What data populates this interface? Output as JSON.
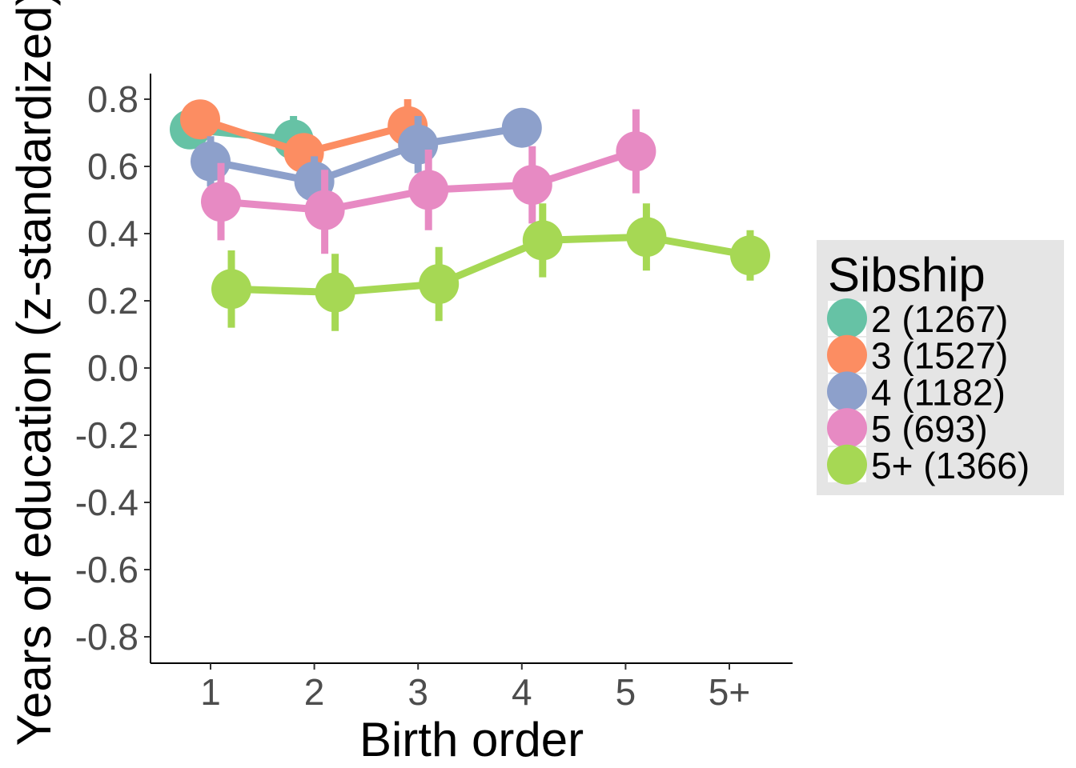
{
  "chart_data": {
    "type": "line",
    "xlabel": "Birth order",
    "ylabel": "Years of education (z-standardized)",
    "categories": [
      "1",
      "2",
      "3",
      "4",
      "5",
      "5+"
    ],
    "ylim": [
      -0.88,
      0.88
    ],
    "yticks": [
      -0.8,
      -0.6,
      -0.4,
      -0.2,
      0.0,
      0.2,
      0.4,
      0.6,
      0.8
    ],
    "ytick_labels": [
      "-0.8",
      "-0.6",
      "-0.4",
      "-0.2",
      "0.0",
      "0.2",
      "0.4",
      "0.6",
      "0.8"
    ],
    "grid": false,
    "legend": {
      "title": "Sibship",
      "position": "right"
    },
    "series": [
      {
        "name": "2 (1267)",
        "color": "#66c2a5",
        "points": [
          {
            "x": "1",
            "y": 0.71,
            "lo": 0.67,
            "hi": 0.75
          },
          {
            "x": "2",
            "y": 0.68,
            "lo": 0.62,
            "hi": 0.75
          }
        ]
      },
      {
        "name": "3 (1527)",
        "color": "#fc8d62",
        "points": [
          {
            "x": "1",
            "y": 0.74,
            "lo": 0.71,
            "hi": 0.77
          },
          {
            "x": "2",
            "y": 0.64,
            "lo": 0.59,
            "hi": 0.69
          },
          {
            "x": "3",
            "y": 0.72,
            "lo": 0.64,
            "hi": 0.8
          }
        ]
      },
      {
        "name": "4 (1182)",
        "color": "#8da0cb",
        "points": [
          {
            "x": "1",
            "y": 0.615,
            "lo": 0.54,
            "hi": 0.69
          },
          {
            "x": "2",
            "y": 0.555,
            "lo": 0.48,
            "hi": 0.63
          },
          {
            "x": "3",
            "y": 0.665,
            "lo": 0.58,
            "hi": 0.75
          },
          {
            "x": "4",
            "y": 0.715,
            "lo": 0.7,
            "hi": 0.73
          }
        ]
      },
      {
        "name": "5 (693)",
        "color": "#e78ac3",
        "points": [
          {
            "x": "1",
            "y": 0.495,
            "lo": 0.38,
            "hi": 0.61
          },
          {
            "x": "2",
            "y": 0.47,
            "lo": 0.34,
            "hi": 0.59
          },
          {
            "x": "3",
            "y": 0.53,
            "lo": 0.41,
            "hi": 0.65
          },
          {
            "x": "4",
            "y": 0.545,
            "lo": 0.43,
            "hi": 0.66
          },
          {
            "x": "5",
            "y": 0.645,
            "lo": 0.52,
            "hi": 0.77
          }
        ]
      },
      {
        "name": "5+ (1366)",
        "color": "#a6d854",
        "points": [
          {
            "x": "1",
            "y": 0.235,
            "lo": 0.12,
            "hi": 0.35
          },
          {
            "x": "2",
            "y": 0.225,
            "lo": 0.11,
            "hi": 0.34
          },
          {
            "x": "3",
            "y": 0.25,
            "lo": 0.14,
            "hi": 0.36
          },
          {
            "x": "4",
            "y": 0.38,
            "lo": 0.27,
            "hi": 0.49
          },
          {
            "x": "5",
            "y": 0.39,
            "lo": 0.29,
            "hi": 0.49
          },
          {
            "x": "5+",
            "y": 0.335,
            "lo": 0.26,
            "hi": 0.41
          }
        ]
      }
    ]
  }
}
